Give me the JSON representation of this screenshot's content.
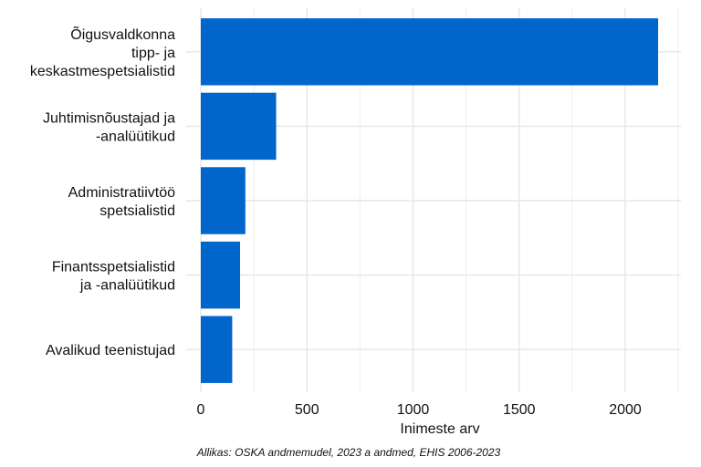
{
  "chart_data": {
    "type": "bar",
    "orientation": "horizontal",
    "categories": [
      [
        "Õigusvaldkonna",
        "tipp- ja",
        "keskastmespetsialistid"
      ],
      [
        "Juhtimisnõustajad ja",
        "-analüütikud"
      ],
      [
        "Administratiivtöö",
        "spetsialistid"
      ],
      [
        "Finantsspetsialistid",
        "ja -analüütikud"
      ],
      [
        "Avalikud teenistujad"
      ]
    ],
    "values": [
      2155,
      355,
      210,
      185,
      148
    ],
    "xlabel": "Inimeste arv",
    "ylabel": "",
    "xlim": [
      0,
      2250
    ],
    "x_ticks": [
      0,
      500,
      1000,
      1500,
      2000
    ],
    "x_tick_labels": [
      "0",
      "500",
      "1000",
      "1500",
      "2000"
    ],
    "grid": true,
    "bar_color": "#0066cc",
    "caption": "Allikas: OSKA andmemudel, 2023 a andmed, EHIS 2006-2023"
  }
}
